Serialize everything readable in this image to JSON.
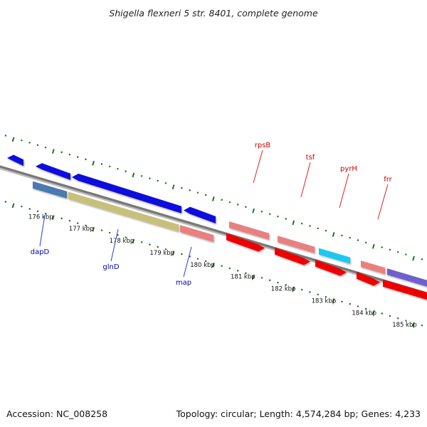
{
  "title": "Shigella flexneri 5 str. 8401, complete genome",
  "footer": {
    "accession": "Accession: NC_008258",
    "summary": "Topology: circular; Length: 4,574,284 bp; Genes: 4,233"
  },
  "colors": {
    "backbone": "#777777",
    "tick": "#1a7a1a",
    "label_forward": "#0000aa",
    "label_reverse": "#cc0000",
    "label_line_forward": "#2244cc",
    "label_line_reverse": "#dd2222"
  },
  "kbp_ticks": [
    "176 kbp",
    "177 kbp",
    "178 kbp",
    "179 kbp",
    "180 kbp",
    "181 kbp",
    "182 kbp",
    "183 kbp",
    "184 kbp",
    "185 kbp"
  ],
  "gene_labels": [
    {
      "name": "dapD",
      "strand": "forward"
    },
    {
      "name": "glnD",
      "strand": "forward"
    },
    {
      "name": "map",
      "strand": "forward"
    },
    {
      "name": "rpsB",
      "strand": "reverse"
    },
    {
      "name": "tsf",
      "strand": "reverse"
    },
    {
      "name": "pyrH",
      "strand": "reverse"
    },
    {
      "name": "frr",
      "strand": "reverse"
    }
  ],
  "features": [
    {
      "name": "gene-upper-1",
      "color": "#0b0bdd"
    },
    {
      "name": "gene-upper-2",
      "color": "#0b0bdd"
    },
    {
      "name": "gene-upper-3",
      "color": "#0b0bdd"
    },
    {
      "name": "gene-upper-4",
      "color": "#0b0bdd"
    },
    {
      "name": "gene-upper-5",
      "color": "#e88080"
    },
    {
      "name": "gene-upper-6",
      "color": "#e88080"
    },
    {
      "name": "gene-upper-7",
      "color": "#1ec8f0"
    },
    {
      "name": "gene-upper-8",
      "color": "#e88080"
    },
    {
      "name": "gene-upper-9",
      "color": "#7060cc"
    },
    {
      "name": "gene-lower-1",
      "color": "#4a7ab0"
    },
    {
      "name": "gene-lower-2",
      "color": "#c8c07a"
    },
    {
      "name": "gene-lower-3",
      "color": "#e88080"
    },
    {
      "name": "gene-lower-4",
      "color": "#ee0000"
    },
    {
      "name": "gene-lower-5",
      "color": "#ee0000"
    },
    {
      "name": "gene-lower-6",
      "color": "#ee0000"
    },
    {
      "name": "gene-lower-7",
      "color": "#ee0000"
    },
    {
      "name": "gene-lower-8",
      "color": "#ee0000"
    }
  ]
}
